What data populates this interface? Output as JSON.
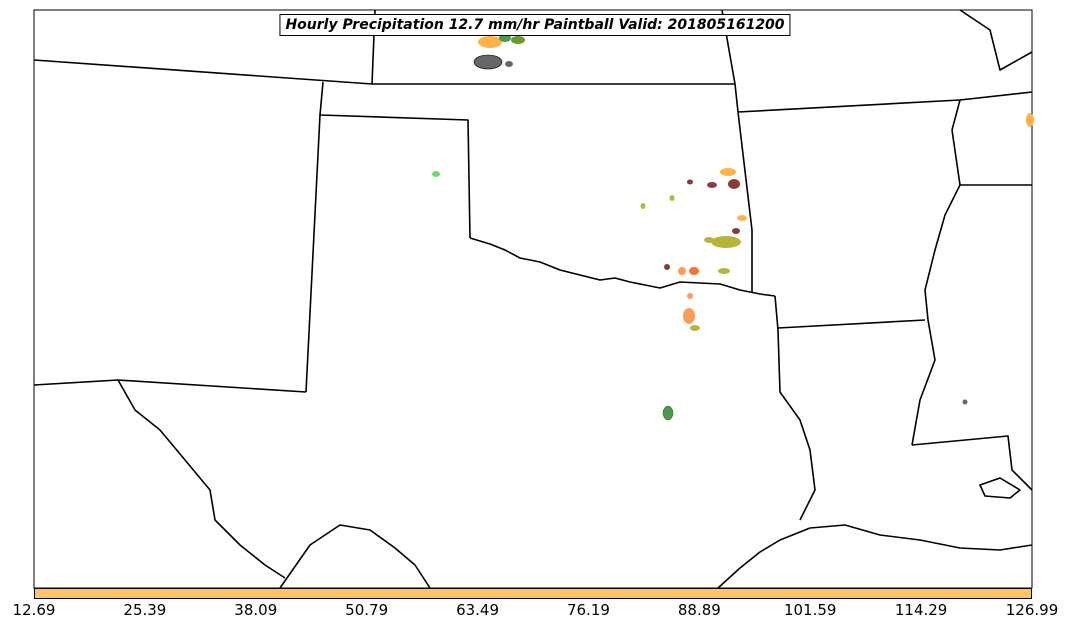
{
  "title": "Hourly Precipitation 12.7 mm/hr Paintball Valid: 201805161200",
  "colorbar": {
    "color": "#ffc266",
    "ticks": [
      "12.69",
      "25.39",
      "38.09",
      "50.79",
      "63.49",
      "76.19",
      "88.89",
      "101.59",
      "114.29",
      "126.99"
    ]
  },
  "colors": {
    "orange": "#ffb347",
    "dark_red": "#8b3a3a",
    "olive": "#b5b53c",
    "green": "#4c9a4c",
    "light_green": "#66dd66",
    "coral": "#ff9a5a",
    "gray": "#666666"
  }
}
